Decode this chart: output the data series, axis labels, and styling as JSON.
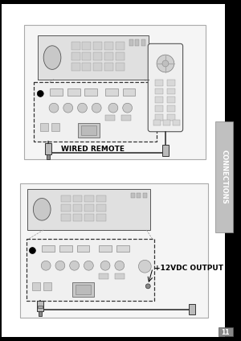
{
  "bg_color": "#000000",
  "page_bg": "#ffffff",
  "tab_bg": "#c0c0c0",
  "tab_text": "CONNECTIONS",
  "tab_text_color": "#ffffff",
  "diagram1_label": "WIRED REMOTE",
  "diagram2_label": "+12VDC OUTPUT",
  "page_number": "11",
  "label1_fontsize": 6.5,
  "label2_fontsize": 6.5,
  "tab_fontsize": 6,
  "page_num_fontsize": 5.5,
  "line_color": "#333333",
  "light_gray": "#d8d8d8",
  "mid_gray": "#aaaaaa",
  "dark_gray": "#555555",
  "box_gray": "#e8e8e8",
  "border_color": "#999999"
}
